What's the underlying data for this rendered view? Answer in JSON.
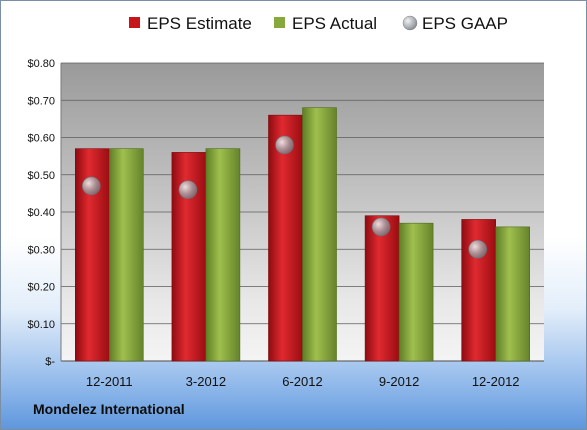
{
  "company": "Mondelez International",
  "colors": {
    "estimate": "#c8141b",
    "actual": "#86a83c",
    "gaap": "#9aa0a6"
  },
  "chart_data": {
    "type": "bar",
    "categories": [
      "12-2011",
      "3-2012",
      "6-2012",
      "9-2012",
      "12-2012"
    ],
    "series": [
      {
        "name": "EPS Estimate",
        "type": "bar",
        "values": [
          0.57,
          0.56,
          0.66,
          0.39,
          0.38
        ]
      },
      {
        "name": "EPS Actual",
        "type": "bar",
        "values": [
          0.57,
          0.57,
          0.68,
          0.37,
          0.36
        ]
      },
      {
        "name": "EPS GAAP",
        "type": "marker",
        "values": [
          0.47,
          0.46,
          0.58,
          0.36,
          0.3
        ]
      }
    ],
    "ylim": [
      0,
      0.8
    ],
    "y_ticks": [
      0,
      0.1,
      0.2,
      0.3,
      0.4,
      0.5,
      0.6,
      0.7,
      0.8
    ],
    "y_tick_labels": [
      "$-",
      "$0.10",
      "$0.20",
      "$0.30",
      "$0.40",
      "$0.50",
      "$0.60",
      "$0.70",
      "$0.80"
    ],
    "grid": true,
    "legend_position": "top"
  }
}
